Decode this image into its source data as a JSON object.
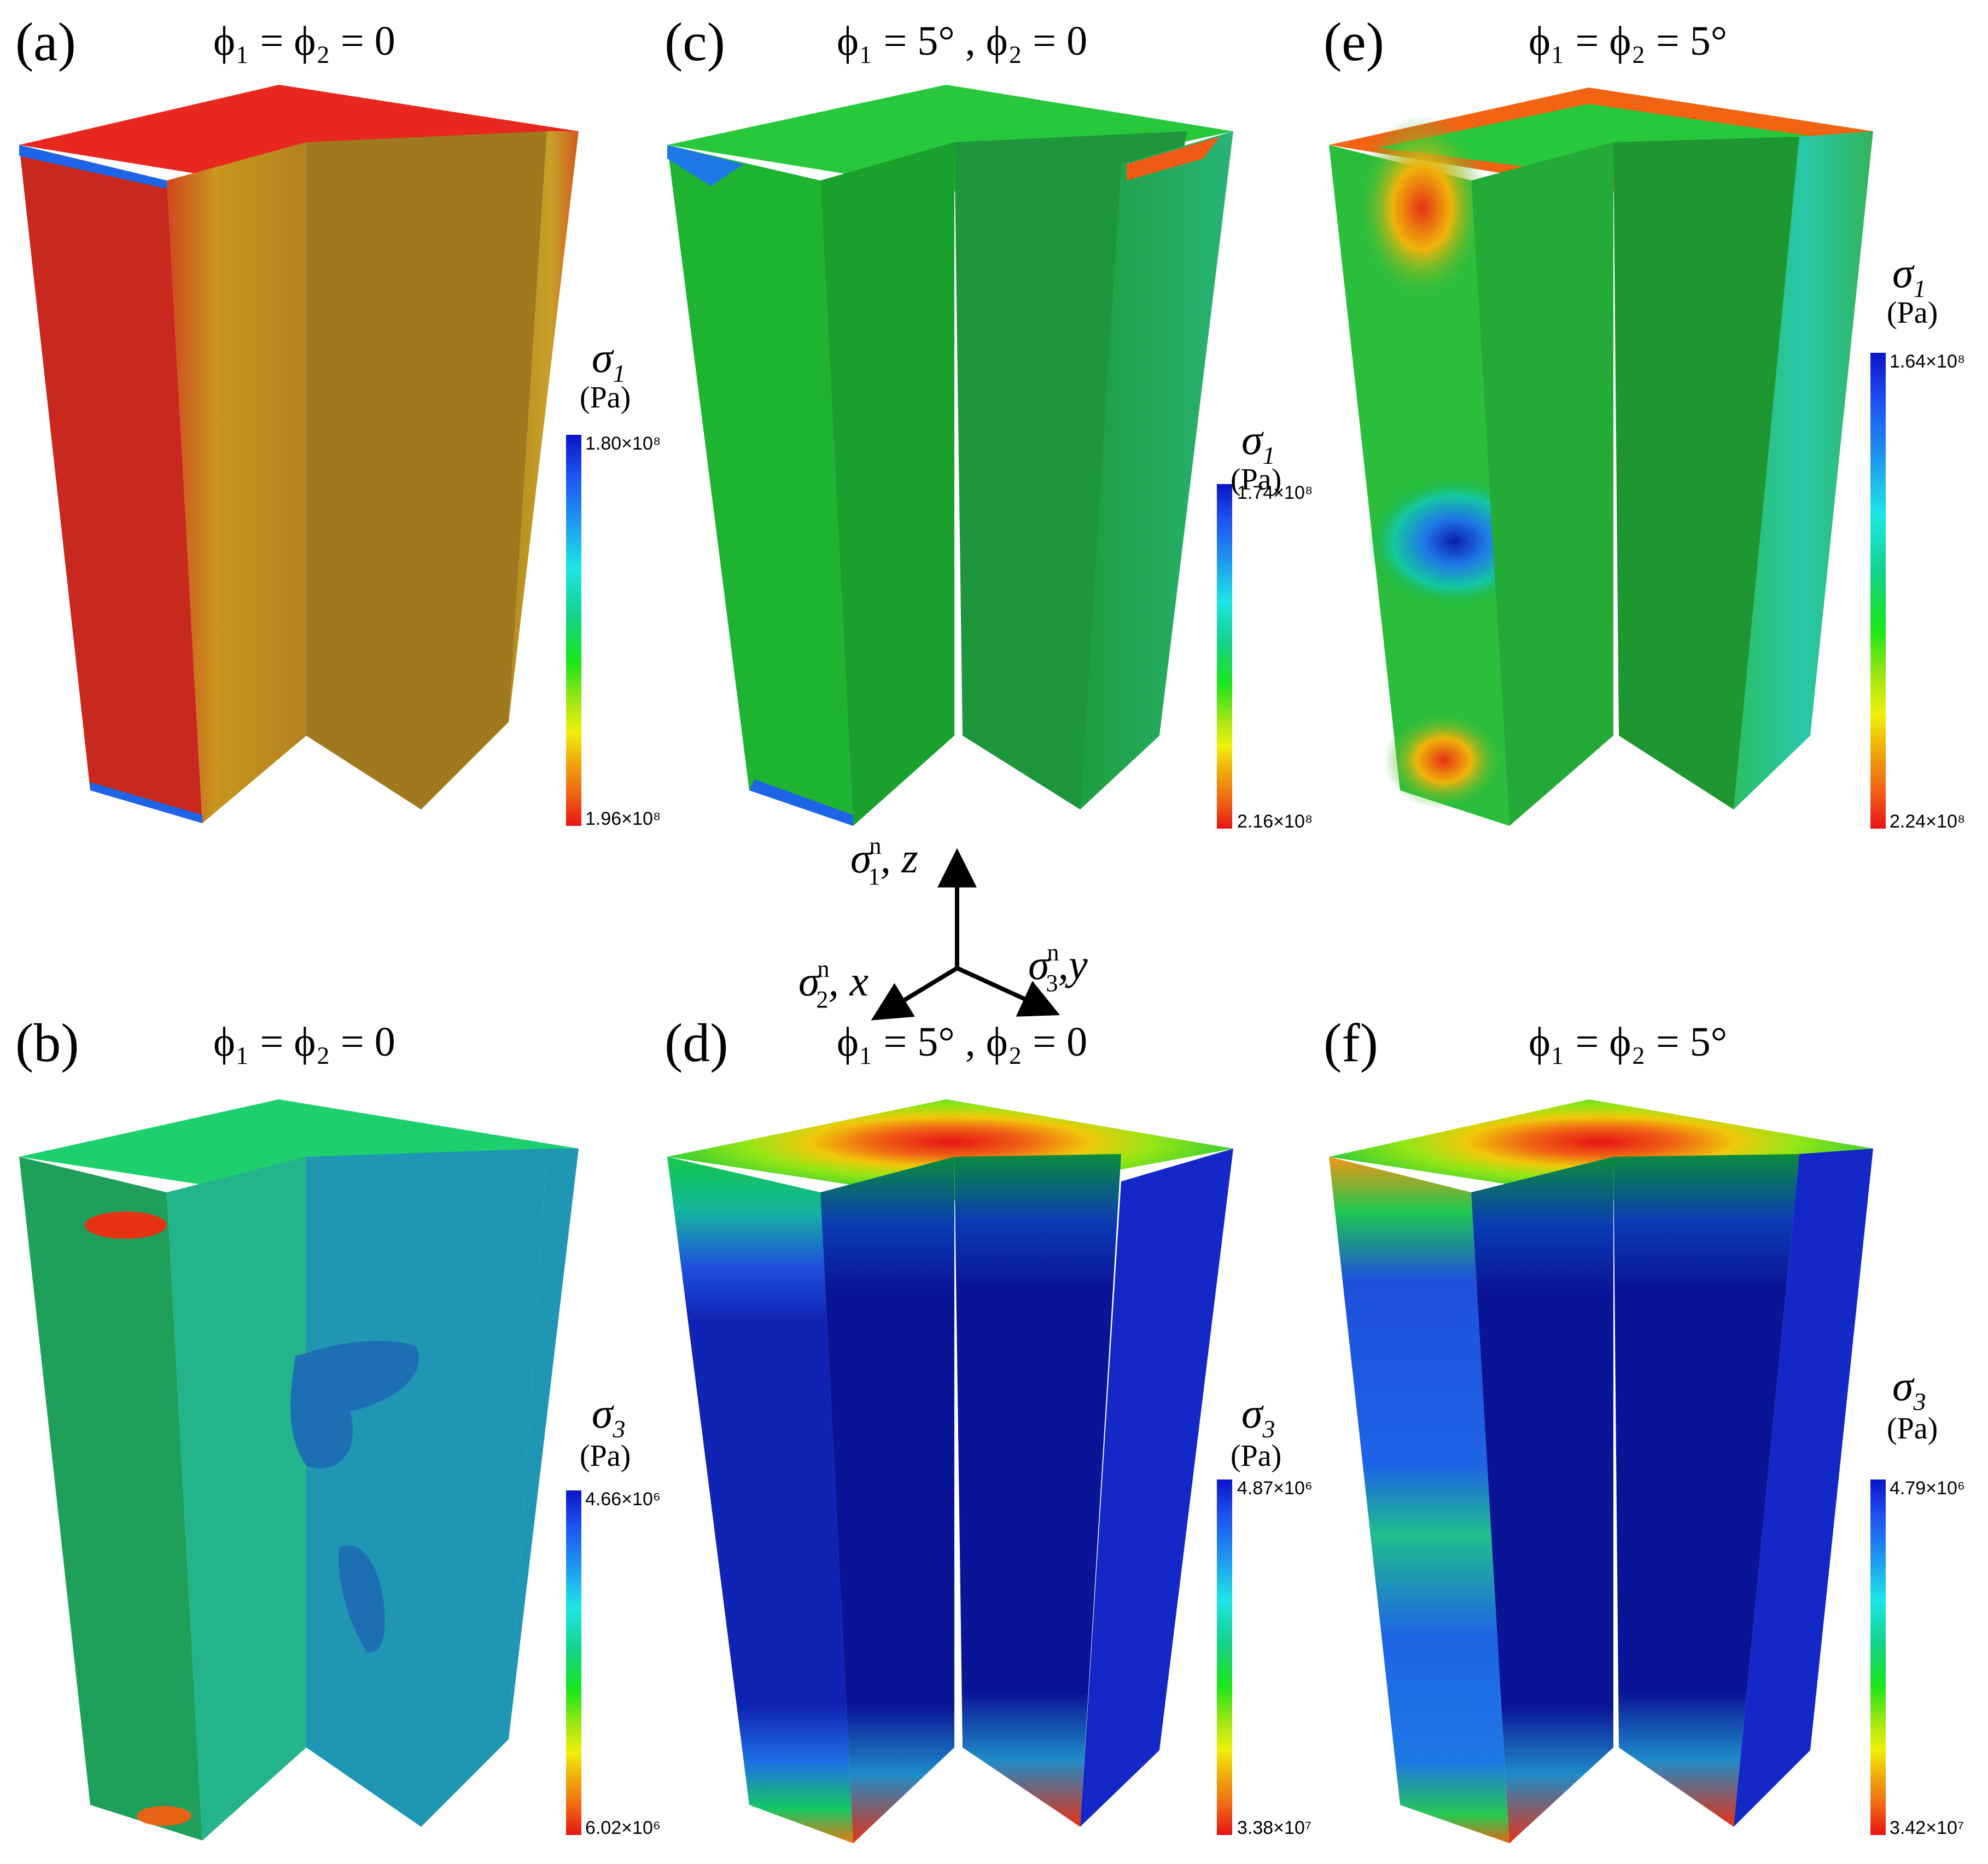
{
  "panels": [
    {
      "label": "(a)",
      "caption": "ϕ₁ = ϕ₂ = 0",
      "symbol": "σ",
      "symbol_sub": "1",
      "unit": "(Pa)",
      "max": "1.80×10⁸",
      "min": "1.96×10⁸",
      "scheme": "s1_uniform"
    },
    {
      "label": "(b)",
      "caption": "ϕ₁ = ϕ₂ = 0",
      "symbol": "σ",
      "symbol_sub": "3",
      "unit": "(Pa)",
      "max": "4.66×10⁶",
      "min": "6.02×10⁶",
      "scheme": "s3_uniform"
    },
    {
      "label": "(c)",
      "caption": "ϕ₁ = 5° , ϕ₂ = 0",
      "symbol": "σ",
      "symbol_sub": "1",
      "unit": "(Pa)",
      "max": "1.74×10⁸",
      "min": "2.16×10⁸",
      "scheme": "s1_rot1"
    },
    {
      "label": "(d)",
      "caption": "ϕ₁ = 5° , ϕ₂ = 0",
      "symbol": "σ",
      "symbol_sub": "3",
      "unit": "(Pa)",
      "max": "4.87×10⁶",
      "min": "3.38×10⁷",
      "scheme": "s3_rot1"
    },
    {
      "label": "(e)",
      "caption": "ϕ₁ = ϕ₂ = 5°",
      "symbol": "σ",
      "symbol_sub": "1",
      "unit": "(Pa)",
      "max": "1.64×10⁸",
      "min": "2.24×10⁸",
      "scheme": "s1_rot2"
    },
    {
      "label": "(f)",
      "caption": "ϕ₁ = ϕ₂ = 5°",
      "symbol": "σ",
      "symbol_sub": "3",
      "unit": "(Pa)",
      "max": "4.79×10⁶",
      "min": "3.42×10⁷",
      "scheme": "s3_rot2"
    }
  ],
  "axes": {
    "z": {
      "symbol": "σ",
      "sup": "n",
      "sub": "1",
      "label": ", z"
    },
    "x": {
      "symbol": "σ",
      "sup": "n",
      "sub": "2",
      "label": ", x"
    },
    "y": {
      "symbol": "σ",
      "sup": "n",
      "sub": "3",
      "label": ",y"
    }
  },
  "colormap": [
    "#0a14c8",
    "#1e50f0",
    "#1e96f0",
    "#1ee6e6",
    "#14d28c",
    "#19e619",
    "#a0e614",
    "#f0f00a",
    "#f0a50a",
    "#f06414",
    "#e61414"
  ]
}
